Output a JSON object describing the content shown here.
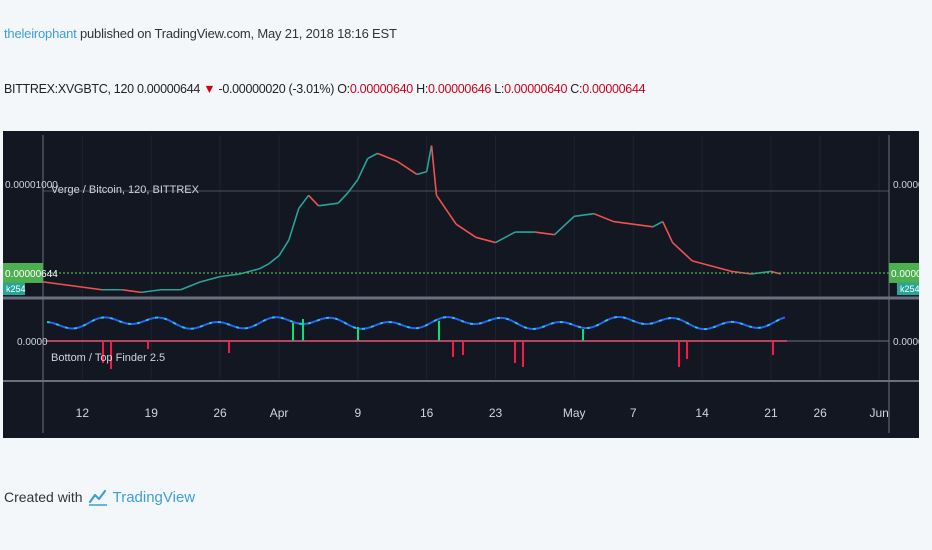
{
  "header": {
    "author": "theleirophant",
    "published": "published on TradingView.com, May 21, 2018 18:16 EST"
  },
  "quote": {
    "symbol": "BITTREX:XVGBTC, 120",
    "last": "0.00000644",
    "change": "-0.00000020 (-3.01%)",
    "o_label": "O:",
    "o": "0.00000640",
    "h_label": "H:",
    "h": "0.00000646",
    "l_label": "L:",
    "l": "0.00000640",
    "c_label": "C:",
    "c": "0.00000644"
  },
  "footer": {
    "created": "Created with",
    "brand": "TradingView"
  },
  "colors": {
    "up": "#26a69a",
    "down": "#ef5350",
    "price_line": "#4caf50",
    "osc_blue": "#2962ff",
    "osc_teal": "#26c6da",
    "osc_red": "#ff1744",
    "osc_green": "#00e676"
  },
  "chart_data": [
    {
      "type": "line",
      "title": "Verge / Bitcoin, 120, BITTREX",
      "ylim": [
        5.6e-06,
        1.17e-05
      ],
      "y_ticks": [
        "0.00001000"
      ],
      "last_price_label": "0.00000644",
      "last_price": 6.44e-06,
      "extra_tag": "k254",
      "x_ticks": [
        "12",
        "19",
        "26",
        "Apr",
        "9",
        "16",
        "23",
        "May",
        "7",
        "14",
        "21",
        "26",
        "Jun"
      ],
      "x_tick_days": [
        11,
        18,
        25,
        31,
        39,
        46,
        53,
        61,
        67,
        74,
        81,
        86,
        92
      ],
      "x_range_days": [
        7,
        93
      ],
      "price_points": [
        [
          7,
          6.1e-06
        ],
        [
          9,
          6e-06
        ],
        [
          11,
          5.9e-06
        ],
        [
          13,
          5.8e-06
        ],
        [
          15,
          5.8e-06
        ],
        [
          17,
          5.7e-06
        ],
        [
          19,
          5.8e-06
        ],
        [
          21,
          5.8e-06
        ],
        [
          23,
          6.1e-06
        ],
        [
          25,
          6.3e-06
        ],
        [
          27,
          6.4e-06
        ],
        [
          29,
          6.6e-06
        ],
        [
          30,
          6.8e-06
        ],
        [
          31,
          7.1e-06
        ],
        [
          32,
          7.7e-06
        ],
        [
          33,
          8.9e-06
        ],
        [
          34,
          9.4e-06
        ],
        [
          35,
          9e-06
        ],
        [
          37,
          9.1e-06
        ],
        [
          38,
          9.5e-06
        ],
        [
          39,
          1e-05
        ],
        [
          40,
          1.08e-05
        ],
        [
          41,
          1.1e-05
        ],
        [
          43,
          1.07e-05
        ],
        [
          45,
          1.02e-05
        ],
        [
          46,
          1.03e-05
        ],
        [
          46.5,
          1.13e-05
        ],
        [
          47,
          9.4e-06
        ],
        [
          49,
          8.3e-06
        ],
        [
          51,
          7.8e-06
        ],
        [
          53,
          7.6e-06
        ],
        [
          55,
          8e-06
        ],
        [
          57,
          8e-06
        ],
        [
          59,
          7.9e-06
        ],
        [
          61,
          8.6e-06
        ],
        [
          63,
          8.7e-06
        ],
        [
          65,
          8.4e-06
        ],
        [
          67,
          8.3e-06
        ],
        [
          69,
          8.2e-06
        ],
        [
          70,
          8.4e-06
        ],
        [
          71,
          7.6e-06
        ],
        [
          73,
          6.9e-06
        ],
        [
          75,
          6.7e-06
        ],
        [
          77,
          6.5e-06
        ],
        [
          79,
          6.4e-06
        ],
        [
          81,
          6.5e-06
        ],
        [
          82,
          6.4e-06
        ]
      ]
    },
    {
      "type": "line",
      "title": "Bottom / Top Finder 2.5",
      "y_ticks": [
        "0.0000"
      ],
      "series": [
        {
          "values": []
        },
        {
          "values": []
        }
      ]
    }
  ]
}
